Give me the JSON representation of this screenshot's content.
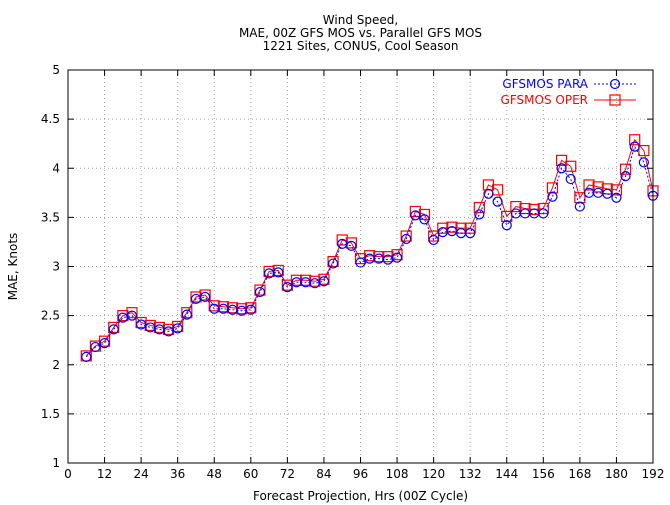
{
  "chart_data": {
    "type": "line",
    "title_lines": [
      "Wind Speed,",
      "MAE, 00Z GFS MOS vs. Parallel GFS MOS",
      "1221 Sites, CONUS, Cool Season"
    ],
    "xlabel": "Forecast Projection, Hrs (00Z Cycle)",
    "ylabel": "MAE, Knots",
    "xlim": [
      0,
      192
    ],
    "ylim": [
      1,
      5
    ],
    "x_ticks": [
      0,
      12,
      24,
      36,
      48,
      60,
      72,
      84,
      96,
      108,
      120,
      132,
      144,
      156,
      168,
      180,
      192
    ],
    "y_ticks": [
      1,
      1.5,
      2,
      2.5,
      3,
      3.5,
      4,
      4.5,
      5
    ],
    "y_tick_labels": [
      "1",
      "1.5",
      "2",
      "2.5",
      "3",
      "3.5",
      "4",
      "4.5",
      "5"
    ],
    "grid": true,
    "legend_position": "top-right",
    "x": [
      6,
      9,
      12,
      15,
      18,
      21,
      24,
      27,
      30,
      33,
      36,
      39,
      42,
      45,
      48,
      51,
      54,
      57,
      60,
      63,
      66,
      69,
      72,
      75,
      78,
      81,
      84,
      87,
      90,
      93,
      96,
      99,
      102,
      105,
      108,
      111,
      114,
      117,
      120,
      123,
      126,
      129,
      132,
      135,
      138,
      141,
      144,
      147,
      150,
      153,
      156,
      159,
      162,
      165,
      168,
      171,
      174,
      177,
      180,
      183,
      186,
      189,
      192
    ],
    "series": [
      {
        "name": "GFSMOS PARA",
        "color": "#0000ff",
        "marker": "circle",
        "line": "dotted",
        "values": [
          2.08,
          2.18,
          2.22,
          2.36,
          2.48,
          2.5,
          2.41,
          2.38,
          2.36,
          2.34,
          2.37,
          2.51,
          2.67,
          2.69,
          2.57,
          2.57,
          2.56,
          2.55,
          2.56,
          2.74,
          2.93,
          2.94,
          2.79,
          2.84,
          2.84,
          2.83,
          2.85,
          3.03,
          3.23,
          3.21,
          3.04,
          3.08,
          3.08,
          3.07,
          3.09,
          3.28,
          3.52,
          3.48,
          3.27,
          3.35,
          3.36,
          3.34,
          3.34,
          3.53,
          3.74,
          3.66,
          3.42,
          3.54,
          3.54,
          3.54,
          3.54,
          3.71,
          4.0,
          3.89,
          3.61,
          3.75,
          3.75,
          3.74,
          3.7,
          3.92,
          4.22,
          4.06,
          3.72
        ]
      },
      {
        "name": "GFSMOS OPER",
        "color": "#ff0000",
        "marker": "square",
        "line": "solid",
        "values": [
          2.09,
          2.19,
          2.24,
          2.38,
          2.5,
          2.53,
          2.43,
          2.4,
          2.38,
          2.36,
          2.39,
          2.53,
          2.69,
          2.71,
          2.6,
          2.59,
          2.58,
          2.57,
          2.58,
          2.76,
          2.95,
          2.96,
          2.81,
          2.86,
          2.86,
          2.85,
          2.87,
          3.05,
          3.27,
          3.24,
          3.08,
          3.11,
          3.1,
          3.1,
          3.12,
          3.31,
          3.56,
          3.53,
          3.31,
          3.39,
          3.4,
          3.39,
          3.39,
          3.6,
          3.83,
          3.78,
          3.51,
          3.61,
          3.59,
          3.58,
          3.59,
          3.8,
          4.08,
          4.02,
          3.7,
          3.83,
          3.81,
          3.79,
          3.78,
          3.99,
          4.29,
          4.18,
          3.77
        ]
      }
    ]
  }
}
